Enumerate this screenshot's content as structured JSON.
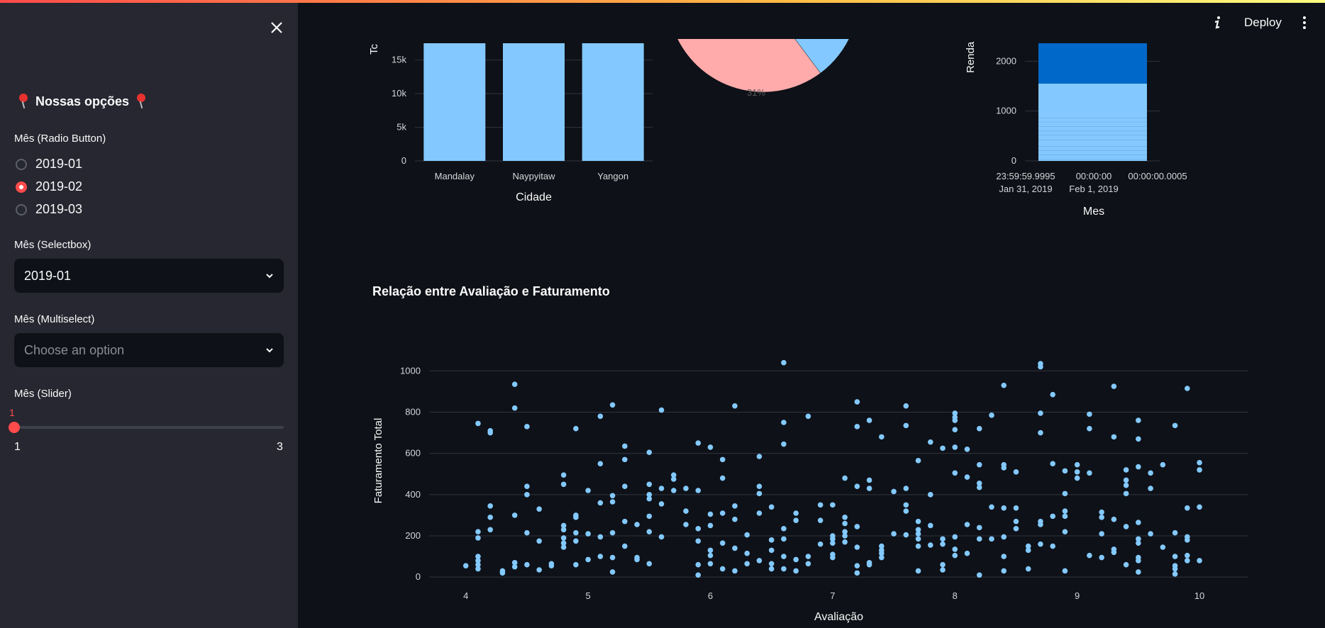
{
  "sidebar": {
    "title": "Nossas opções",
    "radio_label": "Mês (Radio Button)",
    "radio_options": [
      "2019-01",
      "2019-02",
      "2019-03"
    ],
    "radio_selected": "2019-02",
    "selectbox_label": "Mês (Selectbox)",
    "selectbox_value": "2019-01",
    "multiselect_label": "Mês (Multiselect)",
    "multiselect_placeholder": "Choose an option",
    "slider_label": "Mês (Slider)",
    "slider_value": "1",
    "slider_min": "1",
    "slider_max": "3"
  },
  "header": {
    "deploy_label": "Deploy"
  },
  "section_title": "Relação entre Avaliação e Faturamento",
  "colors": {
    "accent": "#ff4b4b",
    "light_blue": "#83c9ff",
    "dark_blue": "#0068c9",
    "pink": "#ffabab"
  },
  "chart_data": [
    {
      "type": "bar",
      "categories": [
        "Mandalay",
        "Naypyitaw",
        "Yangon"
      ],
      "values": [
        17500,
        17500,
        17500
      ],
      "xlabel": "Cidade",
      "ylabel": "Tc",
      "ylim": [
        0,
        17500
      ],
      "yticks": [
        0,
        5000,
        10000,
        15000
      ],
      "ytick_labels": [
        "0",
        "5k",
        "10k",
        "15k"
      ]
    },
    {
      "type": "pie",
      "slices": [
        {
          "label": "31%",
          "value": 31,
          "color": "#ffabab"
        },
        {
          "label": "",
          "value": 34,
          "color": "#83c9ff"
        },
        {
          "label": "",
          "value": 35,
          "color": "#0068c9"
        }
      ]
    },
    {
      "type": "bar",
      "x_tick_labels": [
        "23:59:59.9995\nJan 31, 2019",
        "00:00:00\nFeb 1, 2019",
        "00:00:00.0005"
      ],
      "series": [
        {
          "name": "",
          "values": [
            1550
          ],
          "color": "#83c9ff"
        },
        {
          "name": "",
          "values": [
            810
          ],
          "color": "#0068c9"
        }
      ],
      "xlabel": "Mes",
      "ylabel": "Renda",
      "ylim": [
        0,
        2360
      ],
      "yticks": [
        0,
        1000,
        2000
      ]
    },
    {
      "type": "scatter",
      "xlabel": "Avaliação",
      "ylabel": "Faturamento Total",
      "xlim": [
        3.7,
        10.4
      ],
      "ylim": [
        -20,
        1080
      ],
      "xticks": [
        4,
        5,
        6,
        7,
        8,
        9,
        10
      ],
      "yticks": [
        0,
        200,
        400,
        600,
        800,
        1000
      ],
      "points": [
        [
          4.0,
          55
        ],
        [
          4.1,
          745
        ],
        [
          4.1,
          220
        ],
        [
          4.1,
          190
        ],
        [
          4.1,
          100
        ],
        [
          4.1,
          80
        ],
        [
          4.1,
          60
        ],
        [
          4.1,
          40
        ],
        [
          4.2,
          710
        ],
        [
          4.2,
          700
        ],
        [
          4.2,
          345
        ],
        [
          4.2,
          290
        ],
        [
          4.2,
          230
        ],
        [
          4.3,
          30
        ],
        [
          4.3,
          20
        ],
        [
          4.4,
          935
        ],
        [
          4.4,
          820
        ],
        [
          4.4,
          300
        ],
        [
          4.4,
          70
        ],
        [
          4.4,
          50
        ],
        [
          4.5,
          730
        ],
        [
          4.5,
          440
        ],
        [
          4.5,
          400
        ],
        [
          4.5,
          215
        ],
        [
          4.5,
          60
        ],
        [
          4.6,
          330
        ],
        [
          4.6,
          175
        ],
        [
          4.6,
          35
        ],
        [
          4.7,
          65
        ],
        [
          4.7,
          55
        ],
        [
          4.8,
          495
        ],
        [
          4.8,
          450
        ],
        [
          4.8,
          250
        ],
        [
          4.8,
          230
        ],
        [
          4.8,
          190
        ],
        [
          4.8,
          165
        ],
        [
          4.8,
          145
        ],
        [
          4.9,
          720
        ],
        [
          4.9,
          300
        ],
        [
          4.9,
          290
        ],
        [
          4.9,
          215
        ],
        [
          4.9,
          175
        ],
        [
          4.9,
          60
        ],
        [
          5.0,
          420
        ],
        [
          5.0,
          210
        ],
        [
          5.0,
          85
        ],
        [
          5.1,
          780
        ],
        [
          5.1,
          550
        ],
        [
          5.1,
          360
        ],
        [
          5.1,
          195
        ],
        [
          5.1,
          100
        ],
        [
          5.2,
          835
        ],
        [
          5.2,
          395
        ],
        [
          5.2,
          365
        ],
        [
          5.2,
          215
        ],
        [
          5.2,
          95
        ],
        [
          5.2,
          25
        ],
        [
          5.3,
          635
        ],
        [
          5.3,
          570
        ],
        [
          5.3,
          440
        ],
        [
          5.3,
          270
        ],
        [
          5.3,
          150
        ],
        [
          5.4,
          255
        ],
        [
          5.4,
          95
        ],
        [
          5.4,
          85
        ],
        [
          5.5,
          605
        ],
        [
          5.5,
          450
        ],
        [
          5.5,
          400
        ],
        [
          5.5,
          380
        ],
        [
          5.5,
          295
        ],
        [
          5.5,
          220
        ],
        [
          5.5,
          65
        ],
        [
          5.6,
          810
        ],
        [
          5.6,
          430
        ],
        [
          5.6,
          195
        ],
        [
          5.6,
          355
        ],
        [
          5.7,
          495
        ],
        [
          5.7,
          475
        ],
        [
          5.7,
          420
        ],
        [
          5.8,
          430
        ],
        [
          5.8,
          320
        ],
        [
          5.8,
          255
        ],
        [
          5.9,
          650
        ],
        [
          5.9,
          420
        ],
        [
          5.9,
          235
        ],
        [
          5.9,
          175
        ],
        [
          5.9,
          60
        ],
        [
          5.9,
          10
        ],
        [
          6.0,
          630
        ],
        [
          6.0,
          305
        ],
        [
          6.0,
          250
        ],
        [
          6.0,
          130
        ],
        [
          6.0,
          105
        ],
        [
          6.0,
          65
        ],
        [
          6.1,
          570
        ],
        [
          6.1,
          480
        ],
        [
          6.1,
          310
        ],
        [
          6.1,
          165
        ],
        [
          6.1,
          40
        ],
        [
          6.2,
          830
        ],
        [
          6.2,
          345
        ],
        [
          6.2,
          280
        ],
        [
          6.2,
          140
        ],
        [
          6.2,
          30
        ],
        [
          6.3,
          205
        ],
        [
          6.3,
          115
        ],
        [
          6.3,
          65
        ],
        [
          6.4,
          585
        ],
        [
          6.4,
          440
        ],
        [
          6.4,
          405
        ],
        [
          6.4,
          310
        ],
        [
          6.4,
          80
        ],
        [
          6.5,
          340
        ],
        [
          6.5,
          180
        ],
        [
          6.5,
          130
        ],
        [
          6.5,
          65
        ],
        [
          6.5,
          40
        ],
        [
          6.6,
          1040
        ],
        [
          6.6,
          750
        ],
        [
          6.6,
          645
        ],
        [
          6.6,
          235
        ],
        [
          6.6,
          185
        ],
        [
          6.6,
          100
        ],
        [
          6.6,
          40
        ],
        [
          6.7,
          310
        ],
        [
          6.7,
          275
        ],
        [
          6.7,
          85
        ],
        [
          6.7,
          30
        ],
        [
          6.8,
          780
        ],
        [
          6.8,
          100
        ],
        [
          6.8,
          65
        ],
        [
          6.9,
          350
        ],
        [
          6.9,
          275
        ],
        [
          6.9,
          160
        ],
        [
          7.0,
          350
        ],
        [
          7.0,
          200
        ],
        [
          7.0,
          185
        ],
        [
          7.0,
          165
        ],
        [
          7.0,
          110
        ],
        [
          7.0,
          95
        ],
        [
          7.1,
          480
        ],
        [
          7.1,
          290
        ],
        [
          7.1,
          260
        ],
        [
          7.1,
          220
        ],
        [
          7.1,
          200
        ],
        [
          7.1,
          170
        ],
        [
          7.2,
          850
        ],
        [
          7.2,
          730
        ],
        [
          7.2,
          440
        ],
        [
          7.2,
          245
        ],
        [
          7.2,
          145
        ],
        [
          7.2,
          55
        ],
        [
          7.2,
          20
        ],
        [
          7.3,
          760
        ],
        [
          7.3,
          470
        ],
        [
          7.3,
          430
        ],
        [
          7.3,
          70
        ],
        [
          7.3,
          60
        ],
        [
          7.4,
          680
        ],
        [
          7.4,
          150
        ],
        [
          7.4,
          130
        ],
        [
          7.4,
          115
        ],
        [
          7.4,
          95
        ],
        [
          7.5,
          415
        ],
        [
          7.5,
          210
        ],
        [
          7.6,
          830
        ],
        [
          7.6,
          735
        ],
        [
          7.6,
          430
        ],
        [
          7.6,
          350
        ],
        [
          7.6,
          320
        ],
        [
          7.6,
          205
        ],
        [
          7.7,
          565
        ],
        [
          7.7,
          270
        ],
        [
          7.7,
          230
        ],
        [
          7.7,
          210
        ],
        [
          7.7,
          185
        ],
        [
          7.7,
          150
        ],
        [
          7.7,
          30
        ],
        [
          7.8,
          655
        ],
        [
          7.8,
          400
        ],
        [
          7.8,
          250
        ],
        [
          7.8,
          155
        ],
        [
          7.9,
          625
        ],
        [
          7.9,
          185
        ],
        [
          7.9,
          160
        ],
        [
          7.9,
          60
        ],
        [
          7.9,
          35
        ],
        [
          8.0,
          795
        ],
        [
          8.0,
          775
        ],
        [
          8.0,
          760
        ],
        [
          8.0,
          715
        ],
        [
          8.0,
          630
        ],
        [
          8.0,
          505
        ],
        [
          8.0,
          195
        ],
        [
          8.0,
          135
        ],
        [
          8.0,
          105
        ],
        [
          8.1,
          620
        ],
        [
          8.1,
          485
        ],
        [
          8.1,
          255
        ],
        [
          8.1,
          115
        ],
        [
          8.2,
          720
        ],
        [
          8.2,
          545
        ],
        [
          8.2,
          455
        ],
        [
          8.2,
          435
        ],
        [
          8.2,
          240
        ],
        [
          8.2,
          185
        ],
        [
          8.2,
          10
        ],
        [
          8.3,
          785
        ],
        [
          8.3,
          340
        ],
        [
          8.3,
          185
        ],
        [
          8.4,
          930
        ],
        [
          8.4,
          545
        ],
        [
          8.4,
          530
        ],
        [
          8.4,
          335
        ],
        [
          8.4,
          195
        ],
        [
          8.4,
          100
        ],
        [
          8.4,
          30
        ],
        [
          8.5,
          510
        ],
        [
          8.5,
          335
        ],
        [
          8.5,
          270
        ],
        [
          8.5,
          235
        ],
        [
          8.6,
          150
        ],
        [
          8.6,
          130
        ],
        [
          8.6,
          40
        ],
        [
          8.7,
          1035
        ],
        [
          8.7,
          1020
        ],
        [
          8.7,
          795
        ],
        [
          8.7,
          700
        ],
        [
          8.7,
          270
        ],
        [
          8.7,
          255
        ],
        [
          8.7,
          160
        ],
        [
          8.8,
          885
        ],
        [
          8.8,
          550
        ],
        [
          8.8,
          295
        ],
        [
          8.8,
          150
        ],
        [
          8.9,
          515
        ],
        [
          8.9,
          405
        ],
        [
          8.9,
          320
        ],
        [
          8.9,
          295
        ],
        [
          8.9,
          220
        ],
        [
          8.9,
          30
        ],
        [
          9.0,
          545
        ],
        [
          9.0,
          510
        ],
        [
          9.0,
          480
        ],
        [
          9.1,
          790
        ],
        [
          9.1,
          720
        ],
        [
          9.1,
          505
        ],
        [
          9.1,
          105
        ],
        [
          9.2,
          315
        ],
        [
          9.2,
          290
        ],
        [
          9.2,
          210
        ],
        [
          9.2,
          95
        ],
        [
          9.3,
          925
        ],
        [
          9.3,
          680
        ],
        [
          9.3,
          280
        ],
        [
          9.3,
          135
        ],
        [
          9.3,
          120
        ],
        [
          9.4,
          520
        ],
        [
          9.4,
          470
        ],
        [
          9.4,
          445
        ],
        [
          9.4,
          405
        ],
        [
          9.4,
          245
        ],
        [
          9.4,
          60
        ],
        [
          9.5,
          760
        ],
        [
          9.5,
          670
        ],
        [
          9.5,
          535
        ],
        [
          9.5,
          265
        ],
        [
          9.5,
          185
        ],
        [
          9.5,
          165
        ],
        [
          9.5,
          95
        ],
        [
          9.5,
          80
        ],
        [
          9.5,
          25
        ],
        [
          9.6,
          505
        ],
        [
          9.6,
          430
        ],
        [
          9.6,
          210
        ],
        [
          9.7,
          545
        ],
        [
          9.7,
          145
        ],
        [
          9.8,
          735
        ],
        [
          9.8,
          215
        ],
        [
          9.8,
          100
        ],
        [
          9.8,
          55
        ],
        [
          9.8,
          40
        ],
        [
          9.8,
          15
        ],
        [
          9.9,
          915
        ],
        [
          9.9,
          335
        ],
        [
          9.9,
          195
        ],
        [
          9.9,
          180
        ],
        [
          9.9,
          105
        ],
        [
          9.9,
          80
        ],
        [
          10.0,
          555
        ],
        [
          10.0,
          520
        ],
        [
          10.0,
          340
        ],
        [
          10.0,
          80
        ]
      ]
    }
  ]
}
